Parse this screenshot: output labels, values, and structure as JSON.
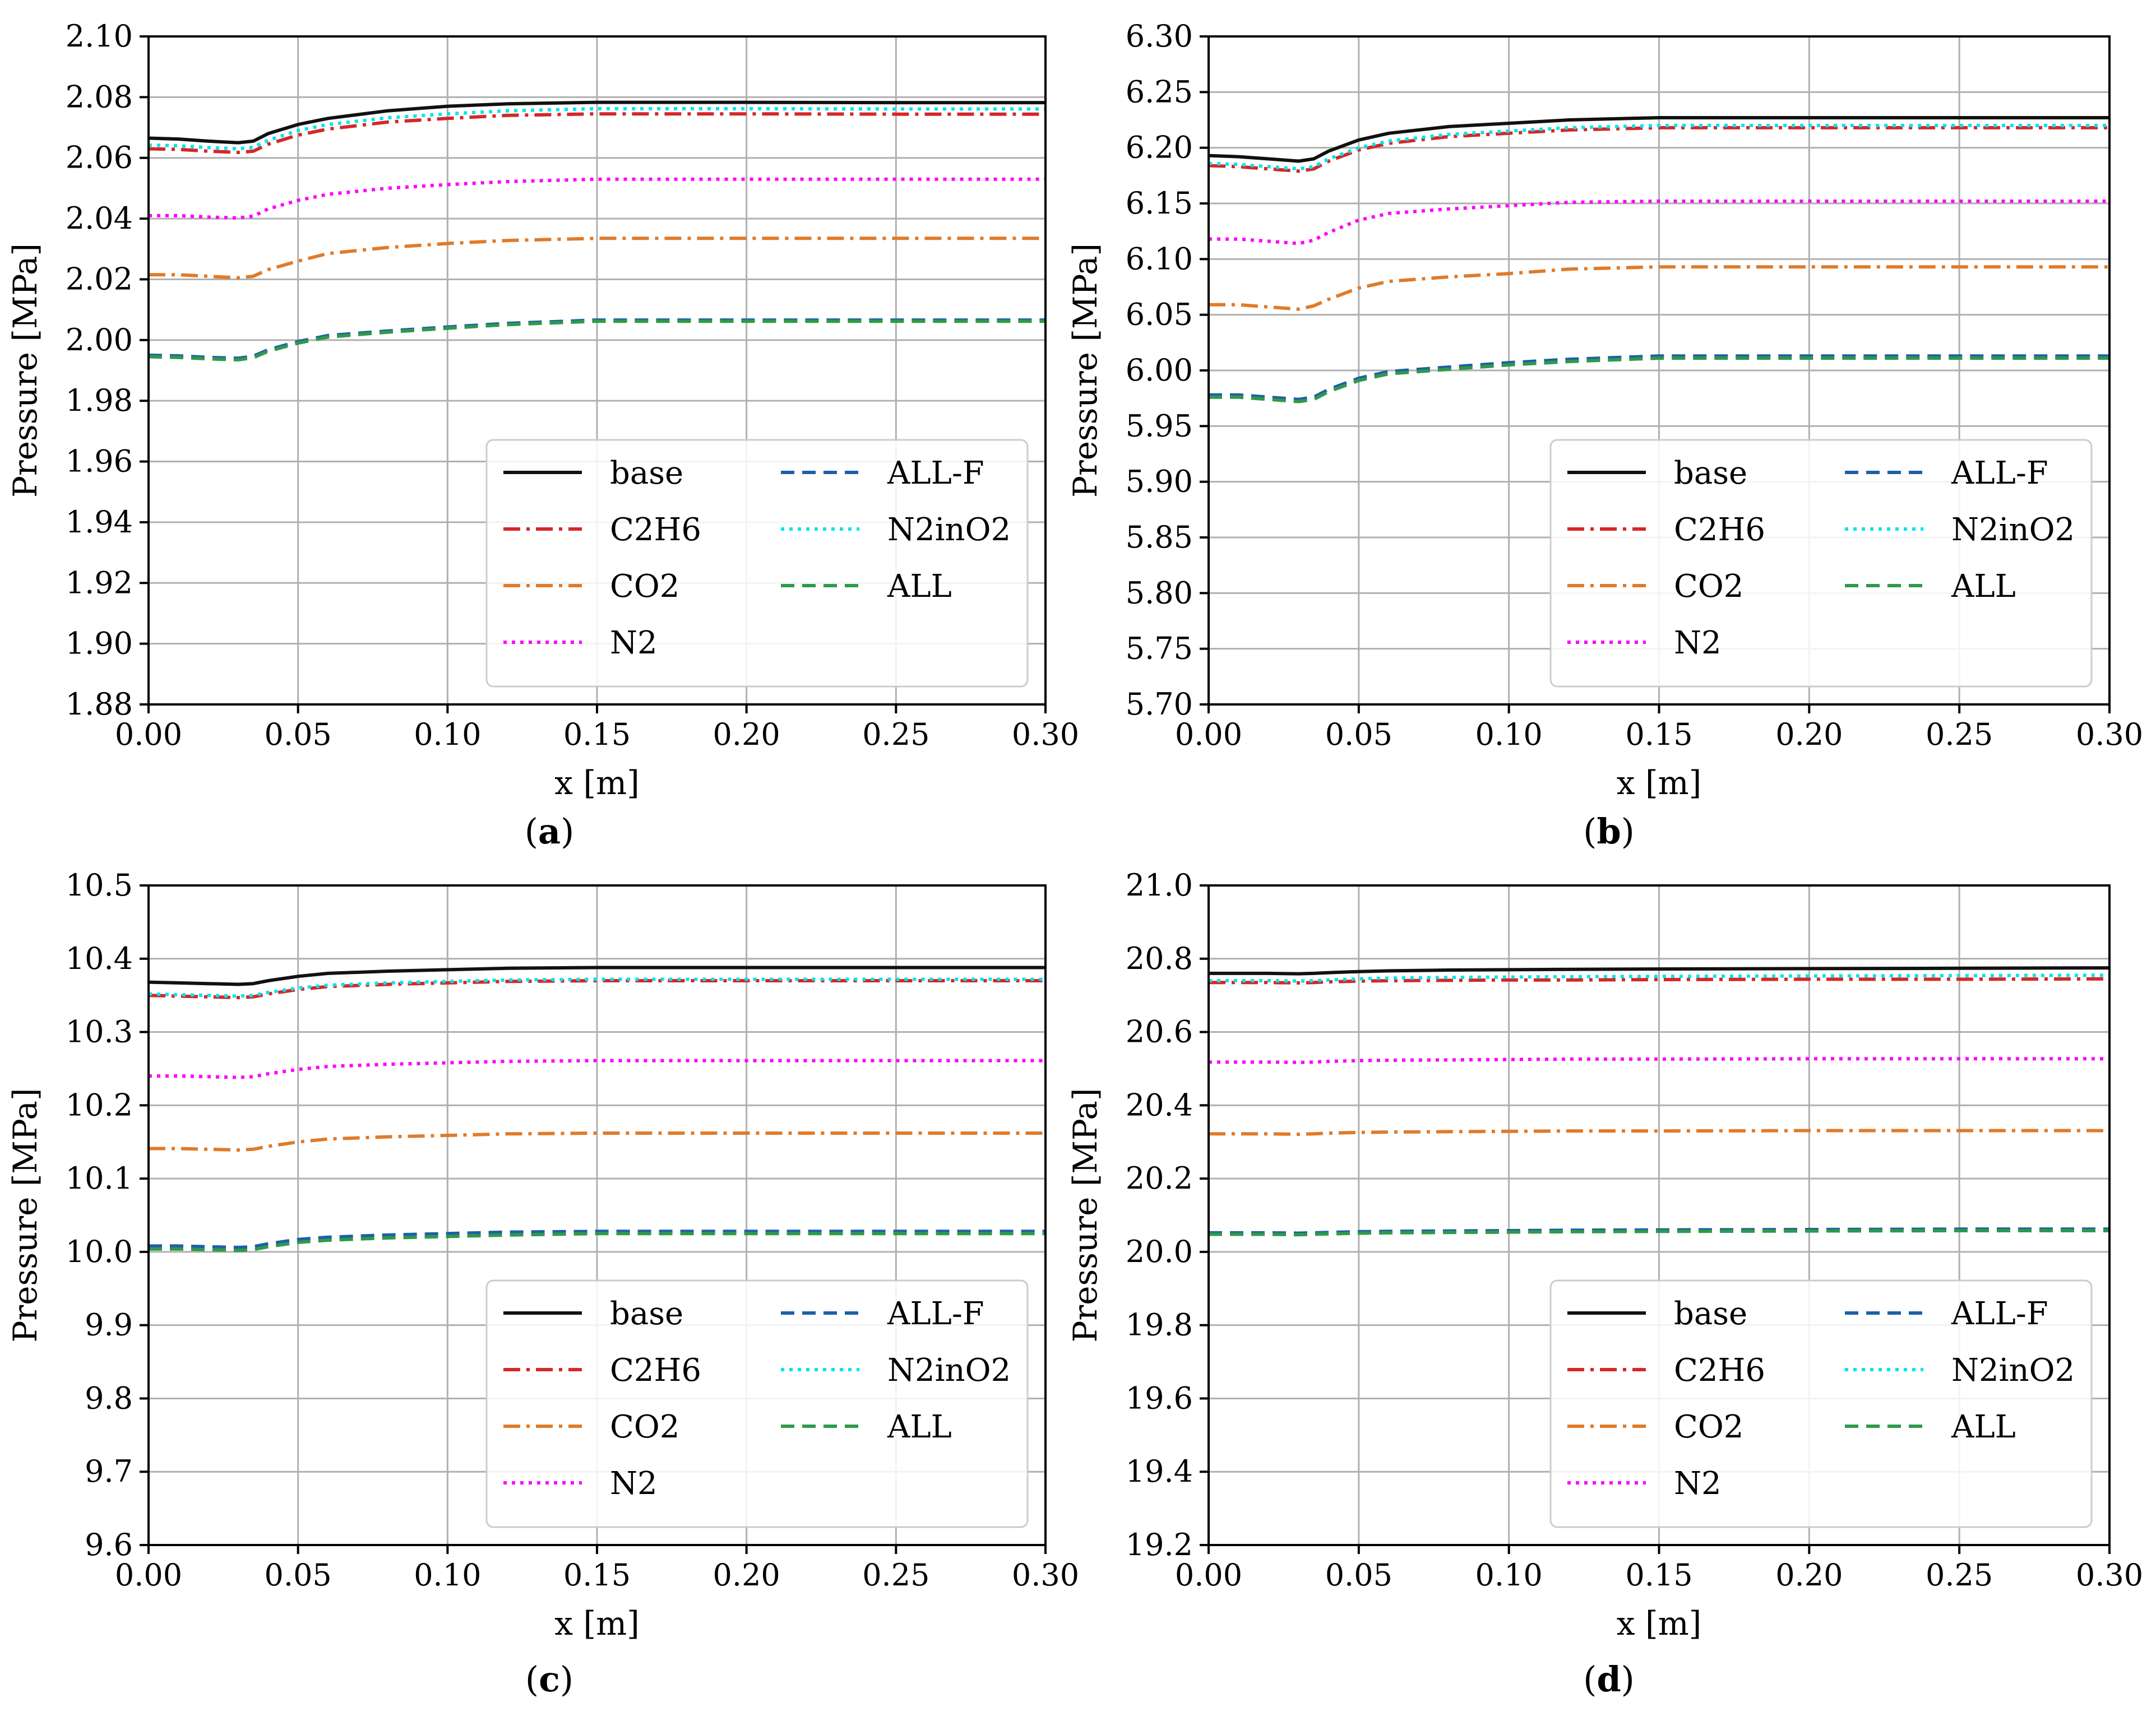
{
  "figure": {
    "series_styles": [
      {
        "key": "base",
        "color": "#111111",
        "dash": "solid"
      },
      {
        "key": "C2H6",
        "color": "#d62728",
        "dash": "dashdot"
      },
      {
        "key": "CO2",
        "color": "#e07b2a",
        "dash": "dashdot"
      },
      {
        "key": "N2",
        "color": "#ff00ff",
        "dash": "dotted"
      },
      {
        "key": "ALL-F",
        "color": "#1f5fa8",
        "dash": "dashed"
      },
      {
        "key": "N2inO2",
        "color": "#00e5ee",
        "dash": "dotted"
      },
      {
        "key": "ALL",
        "color": "#2e9a4a",
        "dash": "dashed"
      }
    ]
  },
  "chart_data": [
    {
      "type": "line",
      "caption_letter": "a",
      "xlabel": "x  [m]",
      "ylabel": "Pressure [MPa]",
      "xlim": [
        0.0,
        0.3
      ],
      "ylim": [
        1.88,
        2.1
      ],
      "xticks": [
        "0.00",
        "0.05",
        "0.10",
        "0.15",
        "0.20",
        "0.25",
        "0.30"
      ],
      "yticks": [
        "1.88",
        "1.90",
        "1.92",
        "1.94",
        "1.96",
        "1.98",
        "2.00",
        "2.02",
        "2.04",
        "2.06",
        "2.08",
        "2.10"
      ],
      "grid": true,
      "legend": {
        "placement": "lower-right",
        "columns": 2
      },
      "x": [
        0.0,
        0.01,
        0.02,
        0.03,
        0.035,
        0.04,
        0.05,
        0.06,
        0.08,
        0.1,
        0.12,
        0.15,
        0.2,
        0.25,
        0.3
      ],
      "series": [
        {
          "name": "base",
          "values": [
            2.0665,
            2.0662,
            2.0655,
            2.065,
            2.0655,
            2.068,
            2.071,
            2.073,
            2.0755,
            2.077,
            2.0778,
            2.0783,
            2.0783,
            2.0782,
            2.0782
          ]
        },
        {
          "name": "C2H6",
          "values": [
            2.063,
            2.0628,
            2.0622,
            2.0618,
            2.0622,
            2.0645,
            2.0675,
            2.0695,
            2.0718,
            2.073,
            2.074,
            2.0745,
            2.0745,
            2.0744,
            2.0744
          ]
        },
        {
          "name": "CO2",
          "values": [
            2.0215,
            2.0215,
            2.021,
            2.0205,
            2.021,
            2.0232,
            2.026,
            2.0285,
            2.0305,
            2.0318,
            2.0328,
            2.0335,
            2.0335,
            2.0335,
            2.0335
          ]
        },
        {
          "name": "N2",
          "values": [
            2.041,
            2.041,
            2.0405,
            2.0402,
            2.0408,
            2.0432,
            2.046,
            2.048,
            2.05,
            2.0512,
            2.0522,
            2.053,
            2.053,
            2.053,
            2.053
          ]
        },
        {
          "name": "ALL-F",
          "values": [
            1.995,
            1.9948,
            1.9943,
            1.994,
            1.9947,
            1.9968,
            1.9995,
            2.0015,
            2.003,
            2.0043,
            2.0055,
            2.0066,
            2.0066,
            2.0066,
            2.0066
          ]
        },
        {
          "name": "N2inO2",
          "values": [
            2.0642,
            2.064,
            2.0634,
            2.063,
            2.0635,
            2.0658,
            2.069,
            2.071,
            2.0732,
            2.0745,
            2.0755,
            2.0762,
            2.0762,
            2.0761,
            2.0761
          ]
        },
        {
          "name": "ALL",
          "values": [
            1.9945,
            1.9943,
            1.9938,
            1.9935,
            1.9942,
            1.9963,
            1.999,
            2.001,
            2.0026,
            2.0039,
            2.0051,
            2.0062,
            2.0062,
            2.0062,
            2.0062
          ]
        }
      ]
    },
    {
      "type": "line",
      "caption_letter": "b",
      "xlabel": "x  [m]",
      "ylabel": "Pressure [MPa]",
      "xlim": [
        0.0,
        0.3
      ],
      "ylim": [
        5.7,
        6.3
      ],
      "xticks": [
        "0.00",
        "0.05",
        "0.10",
        "0.15",
        "0.20",
        "0.25",
        "0.30"
      ],
      "yticks": [
        "5.70",
        "5.75",
        "5.80",
        "5.85",
        "5.90",
        "5.95",
        "6.00",
        "6.05",
        "6.10",
        "6.15",
        "6.20",
        "6.25",
        "6.30"
      ],
      "grid": true,
      "legend": {
        "placement": "lower-right",
        "columns": 2
      },
      "x": [
        0.0,
        0.01,
        0.02,
        0.03,
        0.035,
        0.04,
        0.05,
        0.06,
        0.08,
        0.1,
        0.12,
        0.15,
        0.2,
        0.25,
        0.3
      ],
      "series": [
        {
          "name": "base",
          "values": [
            6.193,
            6.192,
            6.19,
            6.188,
            6.19,
            6.197,
            6.207,
            6.213,
            6.219,
            6.222,
            6.225,
            6.227,
            6.227,
            6.227,
            6.227
          ]
        },
        {
          "name": "C2H6",
          "values": [
            6.184,
            6.183,
            6.181,
            6.179,
            6.181,
            6.188,
            6.198,
            6.204,
            6.21,
            6.213,
            6.216,
            6.218,
            6.218,
            6.218,
            6.218
          ]
        },
        {
          "name": "CO2",
          "values": [
            6.059,
            6.059,
            6.057,
            6.055,
            6.058,
            6.064,
            6.074,
            6.08,
            6.084,
            6.087,
            6.091,
            6.093,
            6.093,
            6.093,
            6.093
          ]
        },
        {
          "name": "N2",
          "values": [
            6.118,
            6.118,
            6.116,
            6.114,
            6.117,
            6.124,
            6.135,
            6.141,
            6.145,
            6.148,
            6.151,
            6.152,
            6.152,
            6.152,
            6.152
          ]
        },
        {
          "name": "ALL-F",
          "values": [
            5.978,
            5.978,
            5.976,
            5.974,
            5.976,
            5.983,
            5.993,
            5.999,
            6.003,
            6.007,
            6.01,
            6.013,
            6.013,
            6.013,
            6.013
          ]
        },
        {
          "name": "N2inO2",
          "values": [
            6.186,
            6.185,
            6.183,
            6.181,
            6.183,
            6.19,
            6.2,
            6.206,
            6.212,
            6.215,
            6.218,
            6.22,
            6.22,
            6.22,
            6.22
          ]
        },
        {
          "name": "ALL",
          "values": [
            5.976,
            5.976,
            5.974,
            5.972,
            5.974,
            5.981,
            5.991,
            5.997,
            6.001,
            6.005,
            6.008,
            6.011,
            6.011,
            6.011,
            6.011
          ]
        }
      ]
    },
    {
      "type": "line",
      "caption_letter": "c",
      "xlabel": "x  [m]",
      "ylabel": "Pressure [MPa]",
      "xlim": [
        0.0,
        0.3
      ],
      "ylim": [
        9.6,
        10.5
      ],
      "xticks": [
        "0.00",
        "0.05",
        "0.10",
        "0.15",
        "0.20",
        "0.25",
        "0.30"
      ],
      "yticks": [
        "9.6",
        "9.7",
        "9.8",
        "9.9",
        "10.0",
        "10.1",
        "10.2",
        "10.3",
        "10.4",
        "10.5"
      ],
      "grid": true,
      "legend": {
        "placement": "lower-right",
        "columns": 2
      },
      "x": [
        0.0,
        0.01,
        0.02,
        0.03,
        0.035,
        0.04,
        0.05,
        0.06,
        0.08,
        0.1,
        0.12,
        0.15,
        0.2,
        0.25,
        0.3
      ],
      "series": [
        {
          "name": "base",
          "values": [
            10.368,
            10.367,
            10.366,
            10.365,
            10.366,
            10.37,
            10.376,
            10.38,
            10.383,
            10.385,
            10.387,
            10.388,
            10.388,
            10.388,
            10.388
          ]
        },
        {
          "name": "C2H6",
          "values": [
            10.35,
            10.349,
            10.348,
            10.347,
            10.348,
            10.352,
            10.358,
            10.362,
            10.365,
            10.367,
            10.369,
            10.37,
            10.37,
            10.37,
            10.37
          ]
        },
        {
          "name": "CO2",
          "values": [
            10.141,
            10.141,
            10.14,
            10.139,
            10.14,
            10.144,
            10.15,
            10.154,
            10.157,
            10.159,
            10.161,
            10.162,
            10.162,
            10.162,
            10.162
          ]
        },
        {
          "name": "N2",
          "values": [
            10.24,
            10.24,
            10.239,
            10.238,
            10.239,
            10.243,
            10.249,
            10.253,
            10.256,
            10.258,
            10.26,
            10.261,
            10.261,
            10.261,
            10.261
          ]
        },
        {
          "name": "ALL-F",
          "values": [
            10.008,
            10.008,
            10.007,
            10.006,
            10.007,
            10.011,
            10.017,
            10.02,
            10.023,
            10.025,
            10.027,
            10.028,
            10.028,
            10.028,
            10.028
          ]
        },
        {
          "name": "N2inO2",
          "values": [
            10.352,
            10.351,
            10.35,
            10.349,
            10.35,
            10.354,
            10.36,
            10.364,
            10.367,
            10.369,
            10.371,
            10.372,
            10.372,
            10.372,
            10.372
          ]
        },
        {
          "name": "ALL",
          "values": [
            10.004,
            10.004,
            10.003,
            10.002,
            10.003,
            10.007,
            10.013,
            10.016,
            10.019,
            10.021,
            10.023,
            10.025,
            10.025,
            10.025,
            10.025
          ]
        }
      ]
    },
    {
      "type": "line",
      "caption_letter": "d",
      "xlabel": "x  [m]",
      "ylabel": "Pressure [MPa]",
      "xlim": [
        0.0,
        0.3
      ],
      "ylim": [
        19.2,
        21.0
      ],
      "xticks": [
        "0.00",
        "0.05",
        "0.10",
        "0.15",
        "0.20",
        "0.25",
        "0.30"
      ],
      "yticks": [
        "19.2",
        "19.4",
        "19.6",
        "19.8",
        "20.0",
        "20.2",
        "20.4",
        "20.6",
        "20.8",
        "21.0"
      ],
      "grid": true,
      "legend": {
        "placement": "lower-right",
        "columns": 2
      },
      "x": [
        0.0,
        0.01,
        0.02,
        0.03,
        0.035,
        0.04,
        0.05,
        0.06,
        0.08,
        0.1,
        0.12,
        0.15,
        0.2,
        0.25,
        0.3
      ],
      "series": [
        {
          "name": "base",
          "values": [
            20.76,
            20.76,
            20.76,
            20.759,
            20.76,
            20.762,
            20.765,
            20.767,
            20.769,
            20.77,
            20.771,
            20.772,
            20.773,
            20.774,
            20.775
          ]
        },
        {
          "name": "C2H6",
          "values": [
            20.735,
            20.735,
            20.735,
            20.734,
            20.735,
            20.737,
            20.739,
            20.74,
            20.741,
            20.742,
            20.742,
            20.743,
            20.744,
            20.744,
            20.745
          ]
        },
        {
          "name": "CO2",
          "values": [
            20.322,
            20.322,
            20.322,
            20.321,
            20.322,
            20.324,
            20.326,
            20.327,
            20.328,
            20.329,
            20.33,
            20.33,
            20.331,
            20.331,
            20.331
          ]
        },
        {
          "name": "N2",
          "values": [
            20.518,
            20.518,
            20.518,
            20.517,
            20.518,
            20.52,
            20.522,
            20.523,
            20.524,
            20.525,
            20.526,
            20.526,
            20.527,
            20.527,
            20.527
          ]
        },
        {
          "name": "ALL-F",
          "values": [
            20.052,
            20.052,
            20.052,
            20.051,
            20.052,
            20.053,
            20.055,
            20.056,
            20.057,
            20.058,
            20.059,
            20.06,
            20.061,
            20.062,
            20.062
          ]
        },
        {
          "name": "N2inO2",
          "values": [
            20.74,
            20.74,
            20.74,
            20.739,
            20.74,
            20.742,
            20.745,
            20.747,
            20.749,
            20.75,
            20.751,
            20.752,
            20.753,
            20.754,
            20.755
          ]
        },
        {
          "name": "ALL",
          "values": [
            20.048,
            20.048,
            20.048,
            20.047,
            20.048,
            20.049,
            20.051,
            20.052,
            20.053,
            20.054,
            20.055,
            20.056,
            20.057,
            20.058,
            20.058
          ]
        }
      ]
    }
  ]
}
